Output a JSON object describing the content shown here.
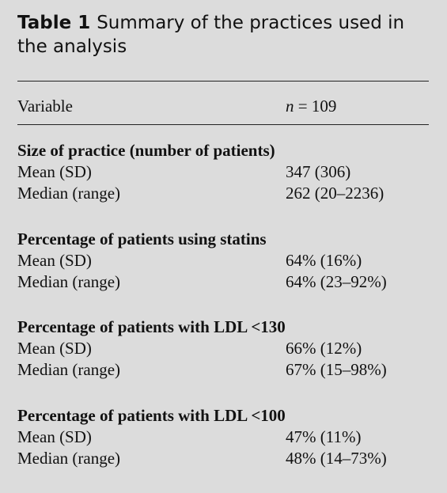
{
  "caption": {
    "label": "Table 1",
    "line1": "Summary of the practices used in",
    "line2": "the analysis"
  },
  "header": {
    "variable": "Variable",
    "n_var": "n",
    "n_value": " = 109"
  },
  "sections": [
    {
      "title": "Size of practice (number of patients)",
      "rows": [
        {
          "label": "Mean (SD)",
          "value": "347 (306)"
        },
        {
          "label": "Median (range)",
          "value": "262 (20–2236)"
        }
      ]
    },
    {
      "title": "Percentage of patients using statins",
      "rows": [
        {
          "label": "Mean (SD)",
          "value": "64% (16%)"
        },
        {
          "label": "Median (range)",
          "value": "64% (23–92%)"
        }
      ]
    },
    {
      "title": "Percentage of patients with LDL <130",
      "rows": [
        {
          "label": "Mean (SD)",
          "value": "66% (12%)"
        },
        {
          "label": "Median (range)",
          "value": "67% (15–98%)"
        }
      ]
    },
    {
      "title": "Percentage of patients with LDL <100",
      "rows": [
        {
          "label": "Mean (SD)",
          "value": "47% (11%)"
        },
        {
          "label": "Median (range)",
          "value": "48% (14–73%)"
        }
      ]
    }
  ]
}
